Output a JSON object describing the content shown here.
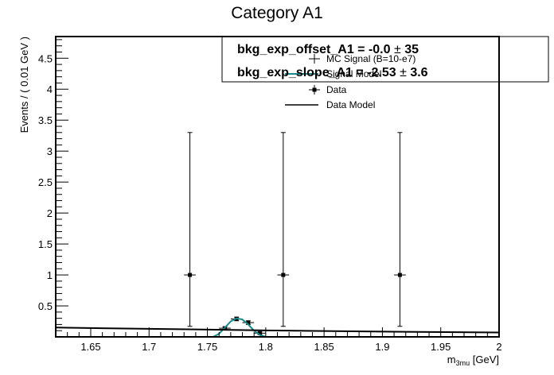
{
  "chart_data": {
    "type": "scatter",
    "title": "Category A1",
    "xlabel_main": "m",
    "xlabel_sub": "3mu",
    "xlabel_unit": " [GeV]",
    "ylabel": "Events / ( 0.01 GeV )",
    "xlim": [
      1.62,
      2.0
    ],
    "ylim": [
      0,
      4.85
    ],
    "x_ticks": [
      1.65,
      1.7,
      1.75,
      1.8,
      1.85,
      1.9,
      1.95,
      2.0
    ],
    "x_tick_labels": [
      "1.65",
      "1.7",
      "1.75",
      "1.8",
      "1.85",
      "1.9",
      "1.95",
      "2"
    ],
    "y_ticks": [
      0.5,
      1,
      1.5,
      2,
      2.5,
      3,
      3.5,
      4,
      4.5
    ],
    "y_tick_labels": [
      "0.5",
      "1",
      "1.5",
      "2",
      "2.5",
      "3",
      "3.5",
      "4",
      "4.5"
    ],
    "grid": false,
    "legend": [
      "MC Signal (B=10-e7)",
      "Signal Model",
      "Data",
      "Data Model"
    ],
    "stats_box": [
      {
        "label": "bkg_exp_offset_A1 = -0.0 ",
        "pm": "±",
        "value": " 35"
      },
      {
        "label": "bkg_exp_slope_A1 = -2.53 ",
        "pm": "±",
        "value": " 3.6"
      }
    ],
    "series": [
      {
        "name": "Data",
        "style": "points-errorbars",
        "color": "#000000",
        "points": [
          {
            "x": 1.735,
            "y": 1,
            "x_err": 0.005,
            "y_lo": 0.17,
            "y_hi": 3.3
          },
          {
            "x": 1.815,
            "y": 1,
            "x_err": 0.005,
            "y_lo": 0.17,
            "y_hi": 3.3
          },
          {
            "x": 1.915,
            "y": 1,
            "x_err": 0.005,
            "y_lo": 0.17,
            "y_hi": 3.3
          }
        ]
      },
      {
        "name": "MC Signal (B=10-e7)",
        "style": "points-errorbars",
        "color": "#000000",
        "points": [
          {
            "x": 1.765,
            "y": 0.14,
            "x_err": 0.005,
            "y_err": 0.02
          },
          {
            "x": 1.775,
            "y": 0.29,
            "x_err": 0.005,
            "y_err": 0.03
          },
          {
            "x": 1.785,
            "y": 0.23,
            "x_err": 0.005,
            "y_err": 0.03
          },
          {
            "x": 1.795,
            "y": 0.06,
            "x_err": 0.005,
            "y_err": 0.02
          }
        ]
      },
      {
        "name": "Signal Model",
        "style": "line",
        "color": "#1a8a8a",
        "x": [
          1.755,
          1.76,
          1.765,
          1.77,
          1.775,
          1.78,
          1.785,
          1.79,
          1.795,
          1.8
        ],
        "y": [
          0.0,
          0.05,
          0.15,
          0.25,
          0.3,
          0.28,
          0.2,
          0.1,
          0.03,
          0.0
        ]
      },
      {
        "name": "Data Model",
        "style": "line",
        "color": "#000000",
        "x": [
          1.62,
          1.7,
          1.8,
          1.9,
          2.0
        ],
        "y": [
          0.15,
          0.13,
          0.105,
          0.085,
          0.07
        ]
      }
    ]
  }
}
